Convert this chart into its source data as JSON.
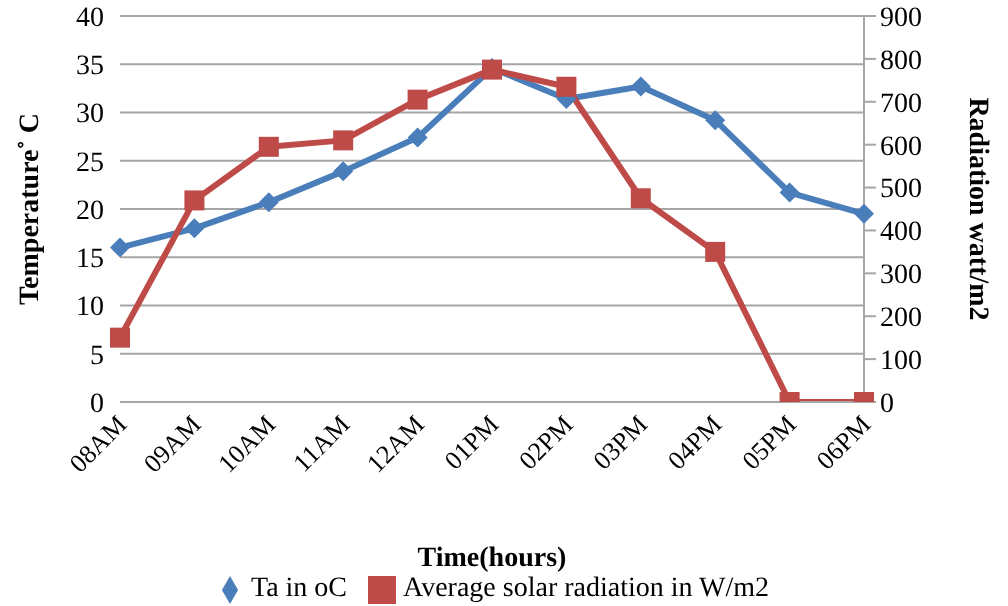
{
  "chart_data": {
    "type": "line",
    "xlabel": "Time(hours)",
    "ylabel": "Temperature˚ C",
    "y2label": "Radiation watt/m2",
    "categories": [
      "08AM",
      "09AM",
      "10AM",
      "11AM",
      "12AM",
      "01PM",
      "02PM",
      "03PM",
      "04PM",
      "05PM",
      "06PM"
    ],
    "series": [
      {
        "name": "Ta in oC",
        "color": "#4a7ebb",
        "marker": "diamond",
        "values": [
          16,
          18,
          20.7,
          23.9,
          27.4,
          34.6,
          31.4,
          32.7,
          29.2,
          21.7,
          19.5
        ]
      },
      {
        "name": "Average solar radiation in W/m2",
        "color": "#be4b48",
        "marker": "square",
        "axis": "y2",
        "values": [
          150,
          470,
          595,
          610,
          705,
          775,
          735,
          475,
          350,
          0,
          0
        ]
      }
    ],
    "ylim": [
      0,
      40
    ],
    "yticks": [
      0,
      5,
      10,
      15,
      20,
      25,
      30,
      35,
      40
    ],
    "y2lim": [
      0,
      900
    ],
    "y2ticks": [
      0,
      100,
      200,
      300,
      400,
      500,
      600,
      700,
      800,
      900
    ],
    "grid": "y",
    "legend": "bottom",
    "line_style": "solid"
  }
}
